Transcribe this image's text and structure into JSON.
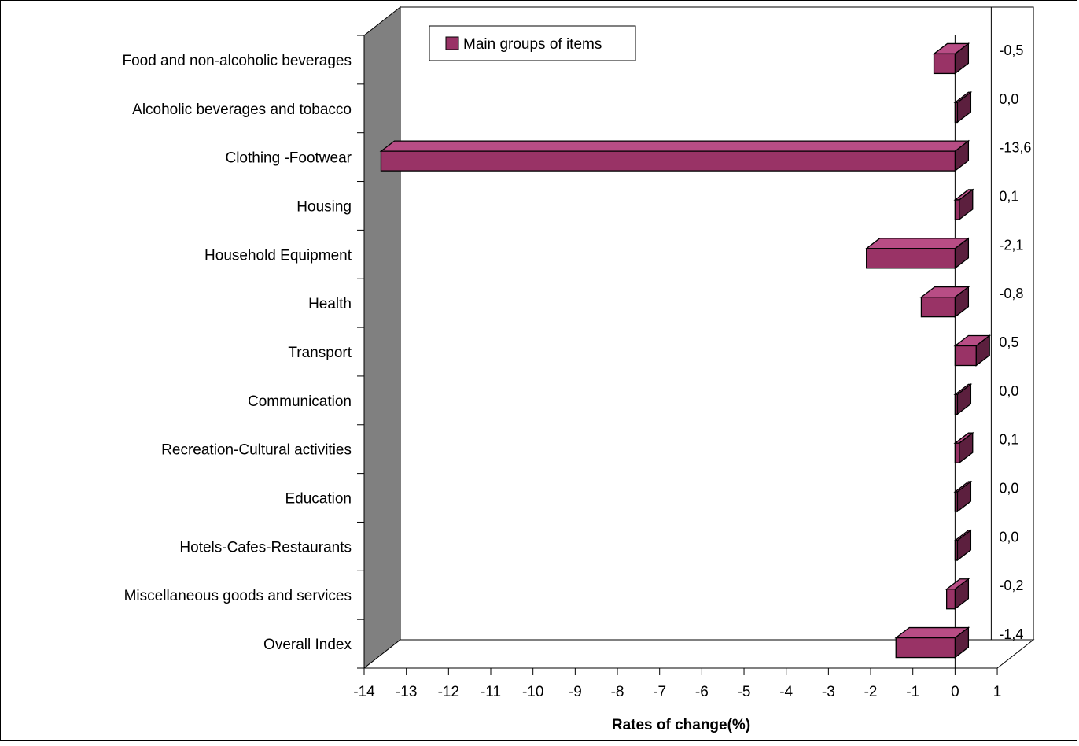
{
  "chart_data": {
    "type": "bar",
    "orientation": "horizontal",
    "style": "3d",
    "categories": [
      "Food and non-alcoholic beverages",
      "Alcoholic beverages and tobacco",
      "Clothing -Footwear",
      "Housing",
      "Household Equipment",
      "Health",
      "Transport",
      "Communication",
      "Recreation-Cultural activities",
      "Education",
      "Hotels-Cafes-Restaurants",
      "Miscellaneous goods and services",
      "Overall Index"
    ],
    "series": [
      {
        "name": "Main groups of items",
        "values": [
          -0.5,
          0.0,
          -13.6,
          0.1,
          -2.1,
          -0.8,
          0.5,
          0.0,
          0.1,
          0.0,
          0.0,
          -0.2,
          -1.4
        ]
      }
    ],
    "value_labels": [
      "-0,5",
      "0,0",
      "-13,6",
      "0,1",
      "-2,1",
      "-0,8",
      "0,5",
      "0,0",
      "0,1",
      "0,0",
      "0,0",
      "-0,2",
      "-1,4"
    ],
    "xlabel": "Rates of change(%)",
    "ylabel": "",
    "xlim": [
      -14,
      1
    ],
    "xticks": [
      -14,
      -13,
      -12,
      -11,
      -10,
      -9,
      -8,
      -7,
      -6,
      -5,
      -4,
      -3,
      -2,
      -1,
      0,
      1
    ],
    "legend": "top-left",
    "grid": false,
    "colors": {
      "bar_front": "#993366",
      "bar_top": "#B84D85",
      "bar_side": "#5C1F3E",
      "left_wall": "#808080"
    }
  }
}
